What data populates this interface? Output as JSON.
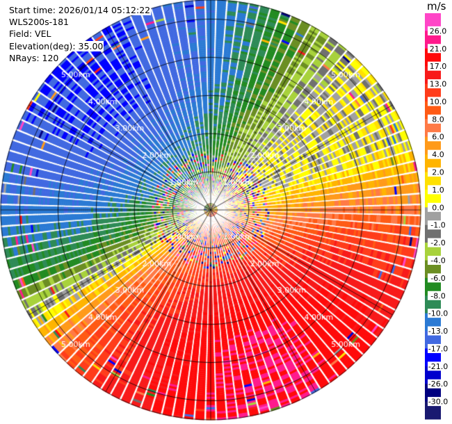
{
  "header": {
    "start_time": "Start time: 2026/01/14 05:12:22",
    "station": "WLS200s-181",
    "field": "Field: VEL",
    "elevation": "Elevation(deg): 35.00",
    "nrays": "NRays: 120"
  },
  "colorbar": {
    "unit": "m/s",
    "ticks": [
      "26.0",
      "21.0",
      "17.0",
      "13.0",
      "10.0",
      "8.0",
      "6.0",
      "4.0",
      "2.0",
      "1.0",
      "0.0",
      "-1.0",
      "-2.0",
      "-4.0",
      "-6.0",
      "-8.0",
      "-10.0",
      "-13.0",
      "-17.0",
      "-21.0",
      "-26.0",
      "-30.0"
    ],
    "colors": [
      "#ff45c7",
      "#ff1a8c",
      "#ff0a0a",
      "#f81a1a",
      "#ff3c1a",
      "#ff5a14",
      "#ff7a46",
      "#ff9a1a",
      "#ffb400",
      "#ffe000",
      "#ffff00",
      "#a0a0a0",
      "#707070",
      "#a8d23c",
      "#6b8e23",
      "#228b22",
      "#2e8b57",
      "#2b7ad4",
      "#4169e1",
      "#0000ff",
      "#0000cd",
      "#000080",
      "#191970"
    ]
  },
  "chart_data": {
    "type": "ppi",
    "field": "VEL",
    "elevation_deg": 35.0,
    "nrays": 120,
    "range_rings_km": [
      "1.00km",
      "2.00km",
      "3.00km",
      "4.00km",
      "5.00km"
    ],
    "max_range_km": 5.5,
    "value_range": [
      -30,
      30
    ],
    "pattern": {
      "approach_azimuth_deg": 315,
      "approach_peak_ms": -17,
      "recede_azimuth_deg": 160,
      "recede_peak_ms": 21,
      "noise_inner_km": 1.5
    }
  }
}
